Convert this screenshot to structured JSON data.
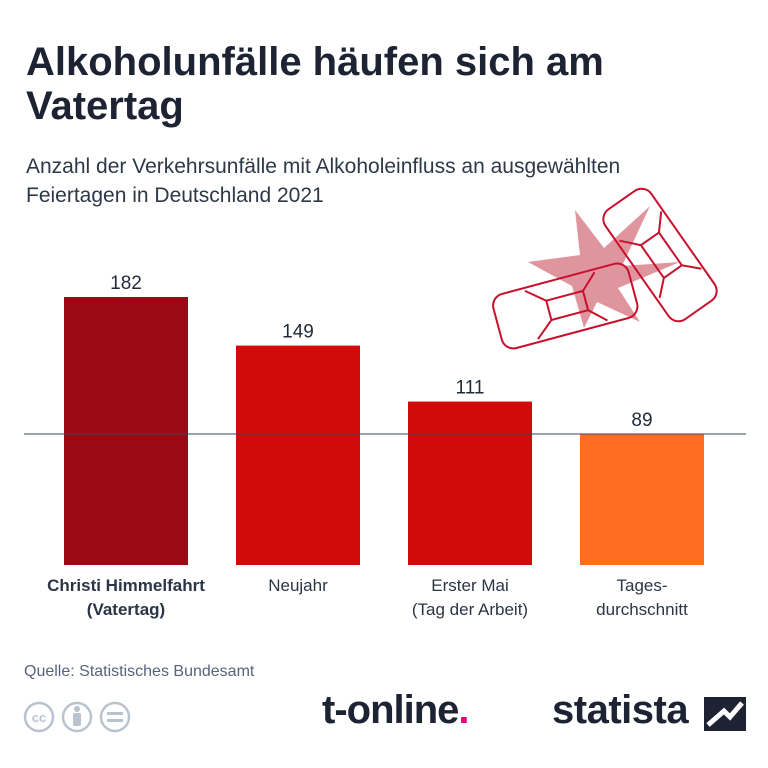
{
  "title": "Alkoholunfälle häufen sich am Vatertag",
  "subtitle": "Anzahl der Verkehrsunfälle mit Alkoholeinfluss an ausgewählten Feiertagen in Deutschland 2021",
  "source": "Quelle: Statistisches Bundesamt",
  "brands": {
    "tonline_main": "t-online",
    "tonline_dot": ".",
    "statista": "statista"
  },
  "icons": [
    "cc-icon",
    "by-person-icon",
    "nd-equal-icon",
    "car-crash-icon",
    "statista-logo-icon"
  ],
  "chart_data": {
    "type": "bar",
    "categories": [
      [
        "Christi Himmelfahrt",
        "(Vatertag)"
      ],
      [
        "Neujahr"
      ],
      [
        "Erster Mai",
        "(Tag der Arbeit)"
      ],
      [
        "Tages-",
        "durchschnitt"
      ]
    ],
    "values": [
      182,
      149,
      111,
      89
    ],
    "value_labels": [
      "182",
      "149",
      "111",
      "89"
    ],
    "bar_colors": [
      "#9b0a14",
      "#d10a0a",
      "#d10a0a",
      "#ff6d22"
    ],
    "highlight_category": 0,
    "reference_line": 89,
    "ylim": [
      0,
      182
    ],
    "grid": false,
    "legend": "none"
  }
}
